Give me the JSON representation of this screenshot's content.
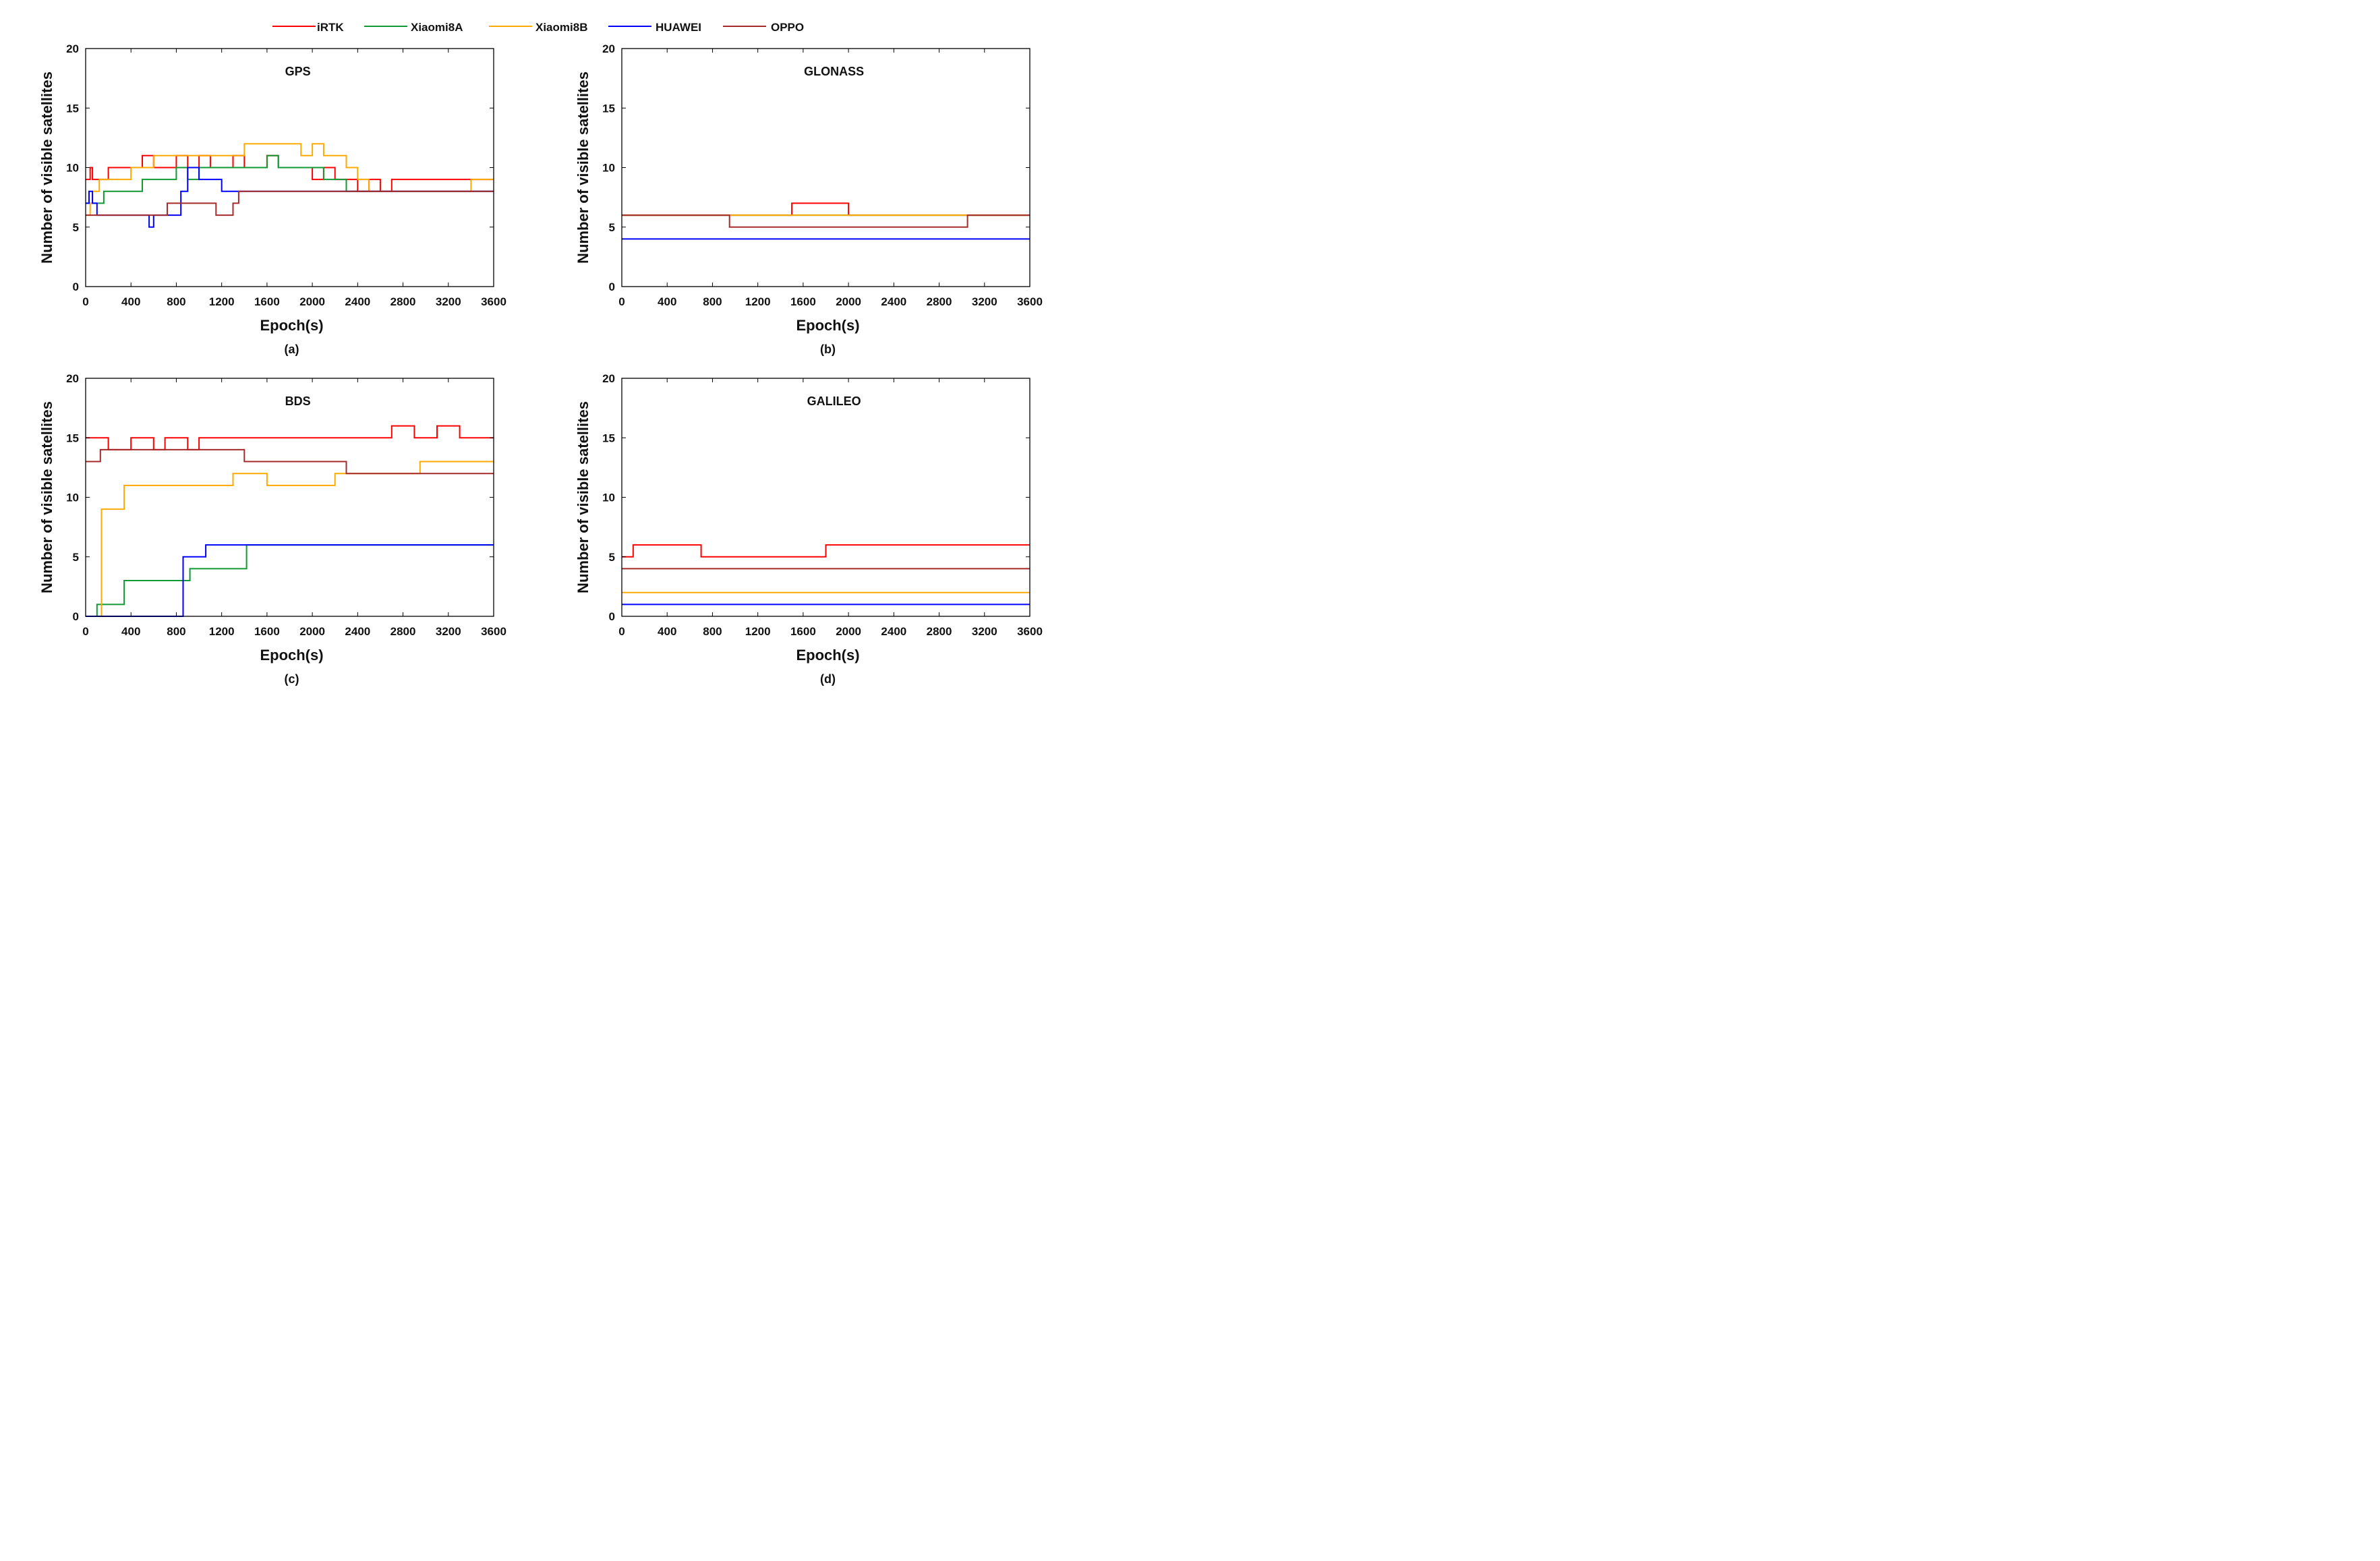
{
  "legend": {
    "placement": "top-center",
    "entries": [
      {
        "name": "iRTK",
        "color": "#ff0000"
      },
      {
        "name": "Xiaomi8A",
        "color": "#119933"
      },
      {
        "name": "Xiaomi8B",
        "color": "#ffaa00"
      },
      {
        "name": "HUAWEI",
        "color": "#0000ff"
      },
      {
        "name": "OPPO",
        "color": "#a52a2a"
      }
    ]
  },
  "chart_data": [
    {
      "type": "line",
      "title": "GPS",
      "caption": "(a)",
      "xlabel": "Epoch(s)",
      "ylabel": "Number of visible satellites",
      "xlim": [
        0,
        3600
      ],
      "ylim": [
        0,
        20
      ],
      "xticks": [
        "0",
        "400",
        "800",
        "1200",
        "1600",
        "2000",
        "2400",
        "2800",
        "3200",
        "3600"
      ],
      "yticks": [
        "0",
        "5",
        "10",
        "15",
        "20"
      ],
      "grid": false,
      "series": [
        {
          "name": "iRTK",
          "color": "#ff0000",
          "x": [
            0,
            40,
            60,
            120,
            200,
            300,
            400,
            500,
            600,
            700,
            800,
            900,
            1000,
            1100,
            1200,
            1300,
            1400,
            1500,
            1600,
            1700,
            1800,
            1900,
            2000,
            2100,
            2200,
            2300,
            2400,
            2500,
            2600,
            2700,
            2800,
            2900,
            3000,
            3100,
            3200,
            3300,
            3400,
            3500,
            3600
          ],
          "y": [
            9,
            10,
            9,
            9,
            10,
            10,
            10,
            11,
            10,
            10,
            11,
            10,
            11,
            10,
            10,
            11,
            10,
            10,
            11,
            10,
            10,
            10,
            9,
            10,
            9,
            9,
            8,
            9,
            8,
            9,
            9,
            9,
            9,
            9,
            9,
            9,
            9,
            9,
            9
          ]
        },
        {
          "name": "Xiaomi8A",
          "color": "#119933",
          "x": [
            0,
            40,
            100,
            160,
            300,
            420,
            500,
            600,
            700,
            800,
            900,
            1000,
            1100,
            1200,
            1300,
            1400,
            1500,
            1600,
            1700,
            1800,
            1900,
            2000,
            2100,
            2200,
            2300,
            2400,
            2500,
            2600,
            2700,
            2800,
            2900,
            3000,
            3100,
            3200,
            3300,
            3400,
            3500,
            3600
          ],
          "y": [
            7,
            7,
            7,
            8,
            8,
            8,
            9,
            9,
            9,
            10,
            9,
            10,
            10,
            10,
            10,
            10,
            10,
            11,
            10,
            10,
            10,
            10,
            9,
            9,
            8,
            8,
            8,
            8,
            8,
            8,
            8,
            8,
            8,
            8,
            8,
            8,
            8,
            8
          ]
        },
        {
          "name": "Xiaomi8B",
          "color": "#ffaa00",
          "x": [
            0,
            40,
            60,
            120,
            160,
            200,
            300,
            400,
            500,
            600,
            700,
            800,
            900,
            1000,
            1100,
            1200,
            1300,
            1400,
            1500,
            1600,
            1700,
            1800,
            1900,
            2000,
            2100,
            2200,
            2300,
            2400,
            2500,
            2600,
            2700,
            2800,
            2900,
            3000,
            3100,
            3200,
            3300,
            3400,
            3500,
            3600
          ],
          "y": [
            6,
            7,
            8,
            9,
            9,
            9,
            9,
            10,
            10,
            11,
            11,
            11,
            11,
            11,
            11,
            11,
            11,
            12,
            12,
            12,
            12,
            12,
            11,
            12,
            11,
            11,
            10,
            9,
            8,
            8,
            8,
            8,
            8,
            8,
            8,
            8,
            8,
            9,
            9,
            9
          ]
        },
        {
          "name": "HUAWEI",
          "color": "#0000ff",
          "x": [
            0,
            30,
            60,
            100,
            150,
            200,
            300,
            400,
            500,
            560,
            600,
            700,
            800,
            840,
            900,
            1000,
            1100,
            1200,
            1300,
            1400,
            1500,
            1600,
            1700,
            1800,
            1900,
            2000,
            2100,
            2200,
            2300,
            2400,
            2500,
            2600,
            2700,
            2800,
            2900,
            3000,
            3100,
            3200,
            3300,
            3400,
            3500,
            3600
          ],
          "y": [
            7,
            8,
            7,
            6,
            6,
            6,
            6,
            6,
            6,
            5,
            6,
            6,
            6,
            8,
            10,
            9,
            9,
            8,
            8,
            8,
            8,
            8,
            8,
            8,
            8,
            8,
            8,
            8,
            8,
            8,
            8,
            8,
            8,
            8,
            8,
            8,
            8,
            8,
            8,
            8,
            8,
            8
          ]
        },
        {
          "name": "OPPO",
          "color": "#a52a2a",
          "x": [
            0,
            30,
            700,
            720,
            1100,
            1150,
            1250,
            1300,
            1350,
            1400,
            1600,
            1800,
            2000,
            2200,
            2400,
            2600,
            2800,
            3000,
            3200,
            3400,
            3600
          ],
          "y": [
            6,
            6,
            6,
            7,
            7,
            6,
            6,
            7,
            8,
            8,
            8,
            8,
            8,
            8,
            8,
            8,
            8,
            8,
            8,
            8,
            8
          ]
        }
      ]
    },
    {
      "type": "line",
      "title": "GLONASS",
      "caption": "(b)",
      "xlabel": "Epoch(s)",
      "ylabel": "Number of visible satellites",
      "xlim": [
        0,
        3600
      ],
      "ylim": [
        0,
        20
      ],
      "xticks": [
        "0",
        "400",
        "800",
        "1200",
        "1600",
        "2000",
        "2400",
        "2800",
        "3200",
        "3600"
      ],
      "yticks": [
        "0",
        "5",
        "10",
        "15",
        "20"
      ],
      "grid": false,
      "series": [
        {
          "name": "iRTK",
          "color": "#ff0000",
          "x": [
            0,
            1200,
            1450,
            1500,
            1600,
            1700,
            1800,
            1900,
            2000,
            2100,
            2200,
            3600
          ],
          "y": [
            6,
            6,
            6,
            7,
            7,
            7,
            7,
            7,
            6,
            6,
            6,
            6
          ]
        },
        {
          "name": "Xiaomi8A",
          "color": "#119933",
          "x": [
            0,
            3600
          ],
          "y": [
            6,
            6
          ]
        },
        {
          "name": "Xiaomi8B",
          "color": "#ffaa00",
          "x": [
            0,
            3600
          ],
          "y": [
            6,
            6
          ]
        },
        {
          "name": "HUAWEI",
          "color": "#0000ff",
          "x": [
            0,
            3600
          ],
          "y": [
            4,
            4
          ]
        },
        {
          "name": "OPPO",
          "color": "#a52a2a",
          "x": [
            0,
            900,
            950,
            1000,
            2000,
            2100,
            3000,
            3050,
            3600
          ],
          "y": [
            6,
            6,
            5,
            5,
            5,
            5,
            5,
            6,
            6
          ]
        }
      ]
    },
    {
      "type": "line",
      "title": "BDS",
      "caption": "(c)",
      "xlabel": "Epoch(s)",
      "ylabel": "Number of visible satellites",
      "xlim": [
        0,
        3600
      ],
      "ylim": [
        0,
        20
      ],
      "xticks": [
        "0",
        "400",
        "800",
        "1200",
        "1600",
        "2000",
        "2400",
        "2800",
        "3200",
        "3600"
      ],
      "yticks": [
        "0",
        "5",
        "10",
        "15",
        "20"
      ],
      "grid": false,
      "series": [
        {
          "name": "iRTK",
          "color": "#ff0000",
          "x": [
            0,
            100,
            200,
            300,
            400,
            500,
            600,
            700,
            800,
            900,
            1000,
            1100,
            1200,
            1300,
            1400,
            1500,
            1600,
            1700,
            1800,
            1900,
            2000,
            2100,
            2200,
            2300,
            2400,
            2500,
            2600,
            2700,
            2800,
            2900,
            3000,
            3100,
            3200,
            3300,
            3400,
            3500,
            3600
          ],
          "y": [
            15,
            15,
            14,
            14,
            15,
            15,
            14,
            15,
            15,
            14,
            15,
            15,
            15,
            15,
            15,
            15,
            15,
            15,
            15,
            15,
            15,
            15,
            15,
            15,
            15,
            15,
            15,
            16,
            16,
            15,
            15,
            16,
            16,
            15,
            15,
            15,
            15
          ]
        },
        {
          "name": "Xiaomi8A",
          "color": "#119933",
          "x": [
            0,
            80,
            100,
            320,
            340,
            900,
            920,
            1400,
            1420,
            2250,
            3600
          ],
          "y": [
            0,
            0,
            1,
            1,
            3,
            3,
            4,
            4,
            6,
            6,
            6
          ]
        },
        {
          "name": "Xiaomi8B",
          "color": "#ffaa00",
          "x": [
            0,
            100,
            140,
            300,
            340,
            800,
            1200,
            1300,
            1600,
            2000,
            2200,
            2300,
            2900,
            2950,
            3600
          ],
          "y": [
            0,
            0,
            9,
            9,
            11,
            11,
            11,
            12,
            11,
            11,
            12,
            12,
            12,
            13,
            13
          ]
        },
        {
          "name": "HUAWEI",
          "color": "#0000ff",
          "x": [
            0,
            800,
            860,
            1040,
            1060,
            3600
          ],
          "y": [
            0,
            0,
            5,
            5,
            6,
            6
          ]
        },
        {
          "name": "OPPO",
          "color": "#a52a2a",
          "x": [
            0,
            30,
            130,
            1200,
            1400,
            2200,
            2300,
            2400,
            3600
          ],
          "y": [
            13,
            13,
            14,
            14,
            13,
            13,
            12,
            12,
            12
          ]
        }
      ]
    },
    {
      "type": "line",
      "title": "GALILEO",
      "caption": "(d)",
      "xlabel": "Epoch(s)",
      "ylabel": "Number of visible satellites",
      "xlim": [
        0,
        3600
      ],
      "ylim": [
        0,
        20
      ],
      "xticks": [
        "0",
        "400",
        "800",
        "1200",
        "1600",
        "2000",
        "2400",
        "2800",
        "3200",
        "3600"
      ],
      "yticks": [
        "0",
        "5",
        "10",
        "15",
        "20"
      ],
      "grid": false,
      "series": [
        {
          "name": "iRTK",
          "color": "#ff0000",
          "x": [
            0,
            100,
            200,
            300,
            400,
            500,
            600,
            700,
            800,
            900,
            1700,
            1800,
            2000,
            2200,
            2400,
            2600,
            2800,
            2900,
            3000,
            3600
          ],
          "y": [
            5,
            6,
            6,
            6,
            6,
            6,
            6,
            5,
            5,
            5,
            5,
            6,
            6,
            6,
            6,
            6,
            6,
            6,
            6,
            6
          ]
        },
        {
          "name": "Xiaomi8B",
          "color": "#ffaa00",
          "x": [
            0,
            3600
          ],
          "y": [
            2,
            2
          ]
        },
        {
          "name": "HUAWEI",
          "color": "#0000ff",
          "x": [
            0,
            3600
          ],
          "y": [
            1,
            1
          ]
        },
        {
          "name": "OPPO",
          "color": "#a52a2a",
          "x": [
            0,
            3600
          ],
          "y": [
            4,
            4
          ]
        }
      ]
    }
  ]
}
